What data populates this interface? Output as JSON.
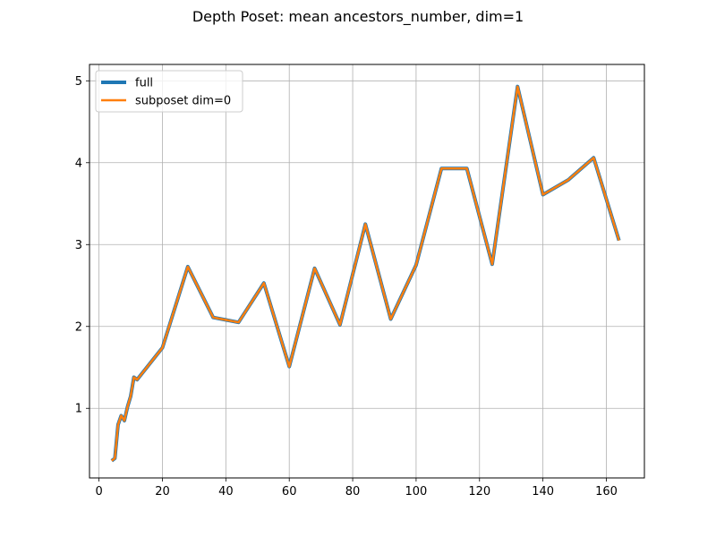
{
  "chart_data": {
    "type": "line",
    "title": "Depth Poset: mean ancestors_number, dim=1",
    "xlabel": "",
    "ylabel": "",
    "xlim": [
      -3.0,
      172.0
    ],
    "ylim": [
      0.15,
      5.2
    ],
    "xticks": [
      0,
      20,
      40,
      60,
      80,
      100,
      120,
      140,
      160
    ],
    "yticks": [
      1,
      2,
      3,
      4,
      5
    ],
    "grid": true,
    "legend_position": "top-left",
    "x": [
      4,
      5,
      6,
      7,
      8,
      9,
      10,
      11,
      12,
      20,
      28,
      36,
      44,
      52,
      60,
      68,
      76,
      84,
      92,
      100,
      108,
      116,
      124,
      132,
      140,
      148,
      156,
      164
    ],
    "series": [
      {
        "name": "full",
        "color": "#1f77b4",
        "values": [
          0.36,
          0.39,
          0.8,
          0.91,
          0.85,
          1.02,
          1.15,
          1.38,
          1.35,
          1.74,
          2.73,
          2.11,
          2.05,
          2.53,
          1.51,
          2.71,
          2.02,
          3.25,
          2.09,
          2.75,
          3.93,
          3.93,
          2.76,
          4.93,
          3.61,
          3.79,
          4.06,
          3.05
        ]
      },
      {
        "name": "subposet dim=0",
        "color": "#ff7f0e",
        "values": [
          0.36,
          0.39,
          0.8,
          0.91,
          0.85,
          1.02,
          1.15,
          1.38,
          1.35,
          1.74,
          2.73,
          2.11,
          2.05,
          2.53,
          1.51,
          2.71,
          2.02,
          3.25,
          2.09,
          2.75,
          3.93,
          3.93,
          2.76,
          4.93,
          3.61,
          3.79,
          4.06,
          3.05
        ]
      }
    ]
  }
}
